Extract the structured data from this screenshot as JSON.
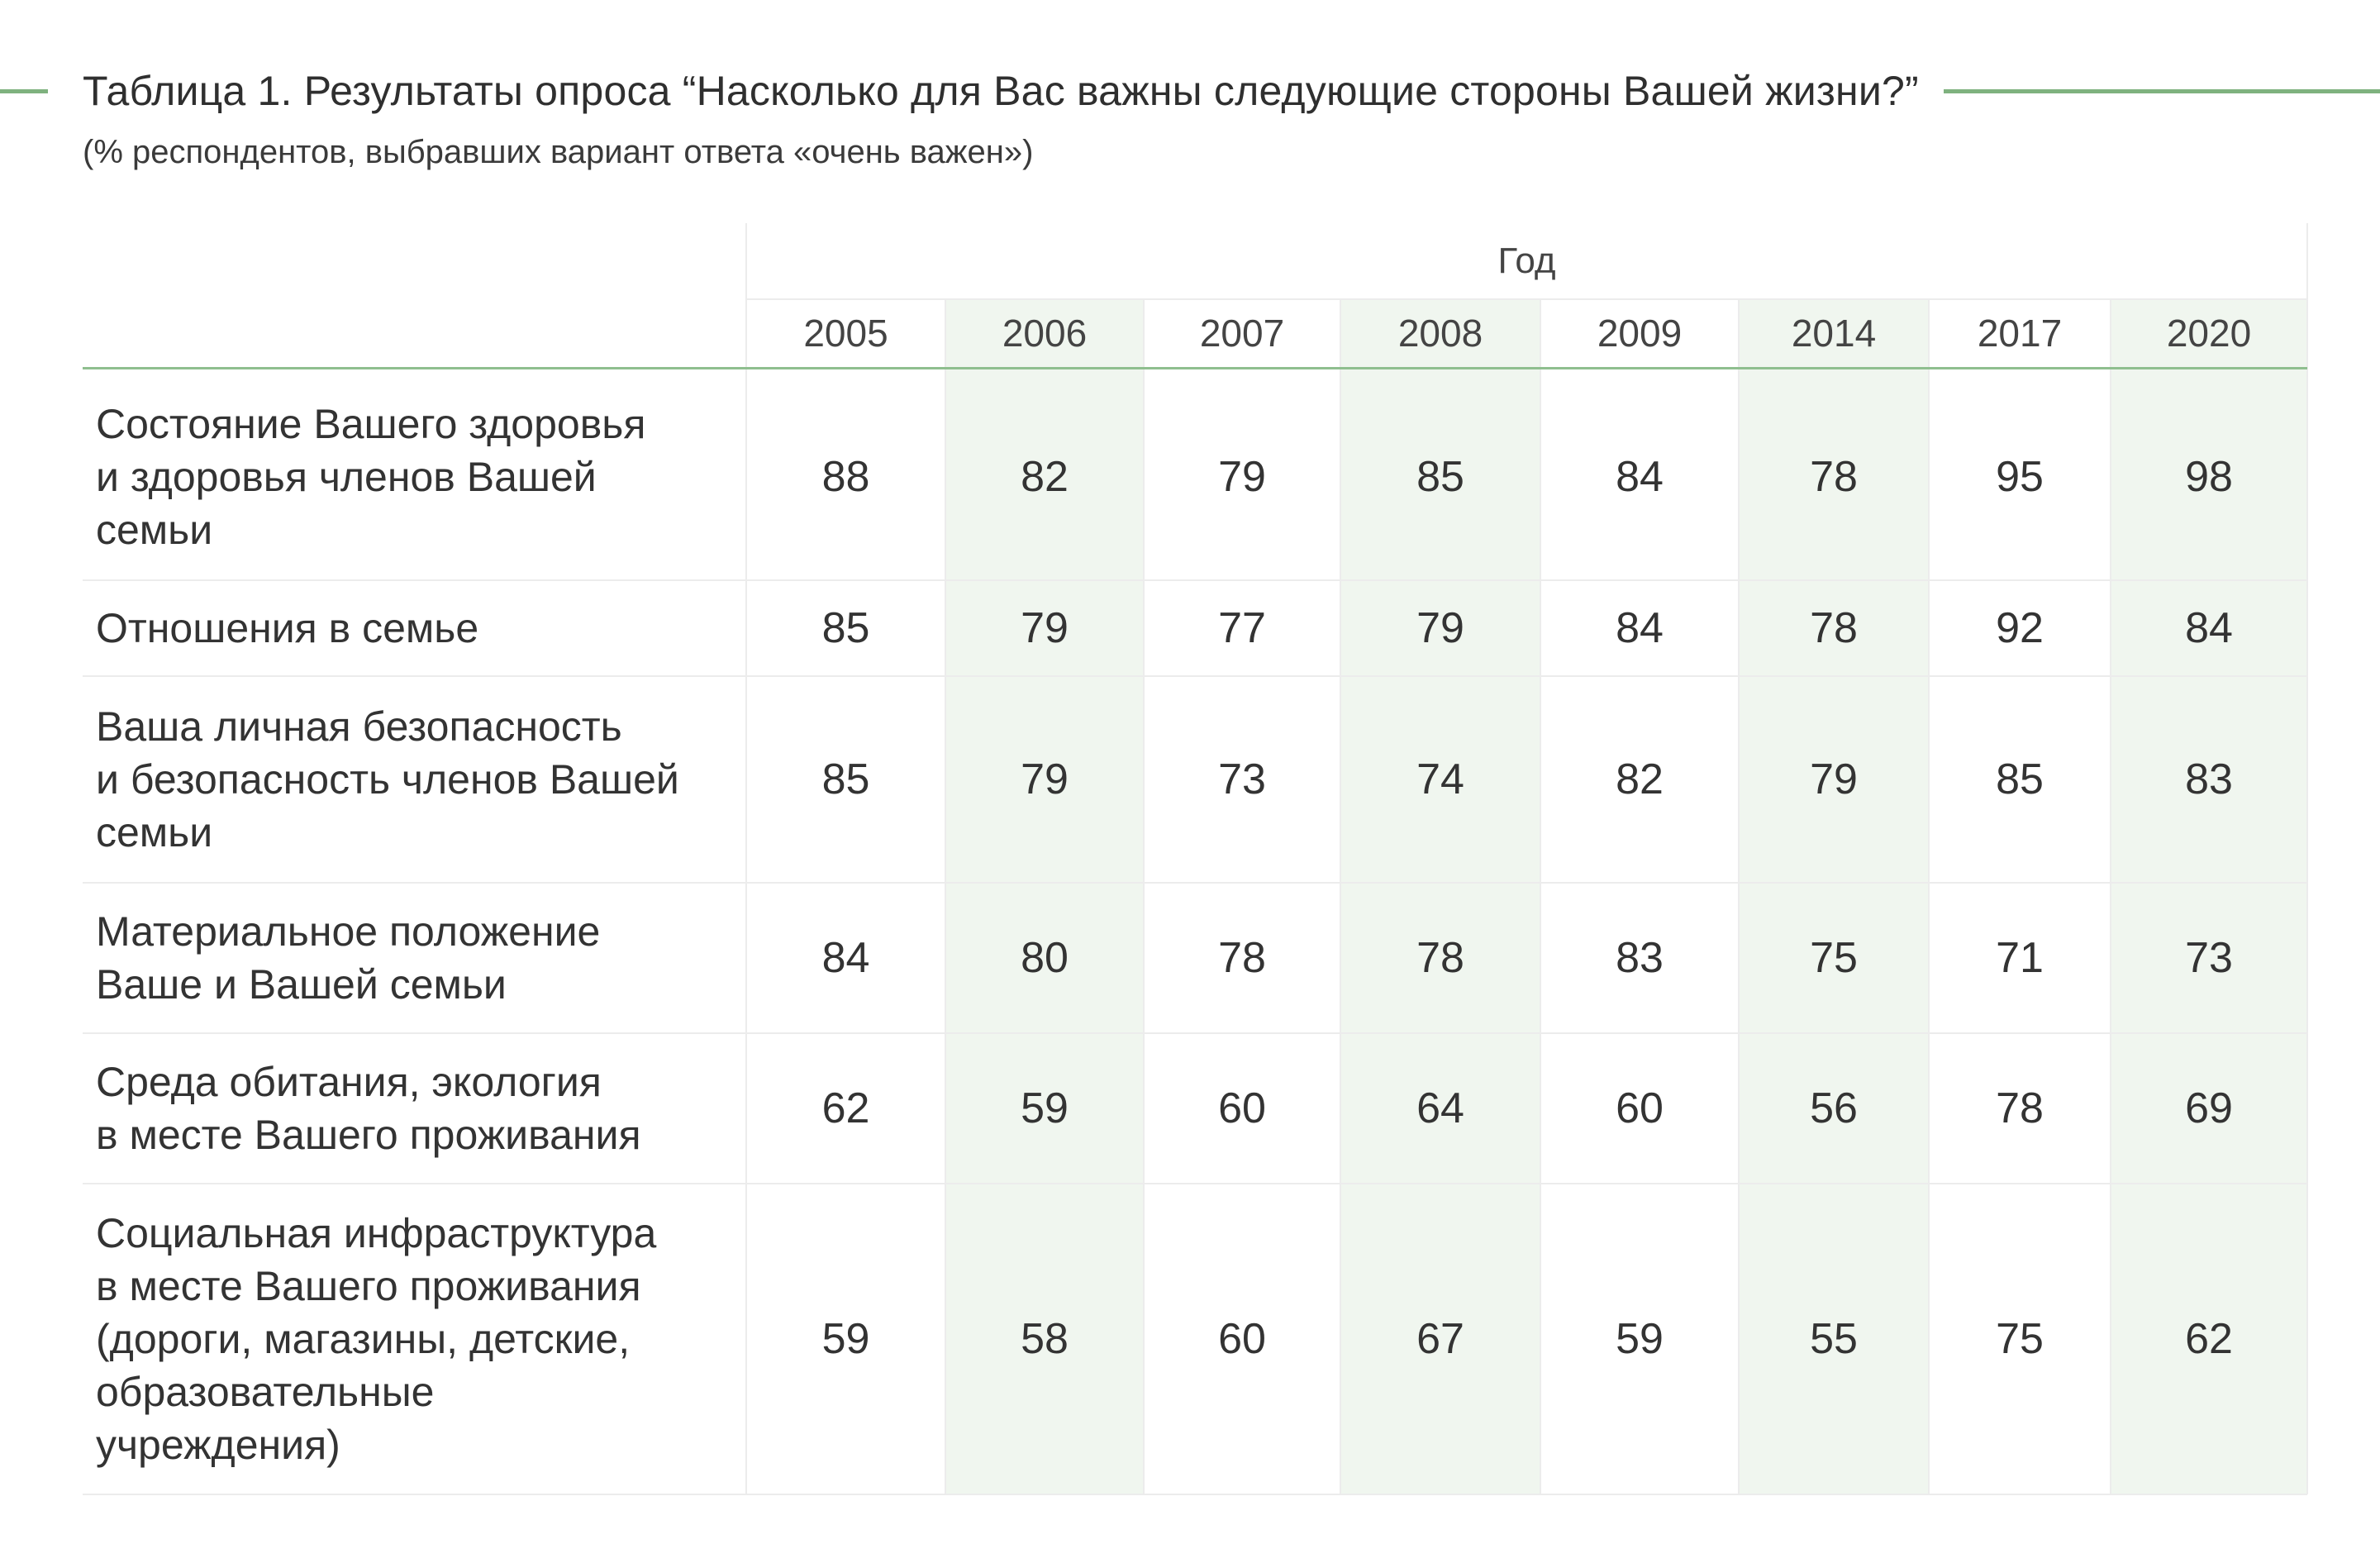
{
  "title": "Таблица 1. Результаты опроса “Насколько для Вас важны следующие стороны Вашей жизни?”",
  "subtitle": "(% респондентов, выбравших вариант ответа «очень важен»)",
  "colors": {
    "accent_line": "#7fb27f",
    "shaded_column": "#f0f6ef"
  },
  "table": {
    "group_header": "Год",
    "years": [
      "2005",
      "2006",
      "2007",
      "2008",
      "2009",
      "2014",
      "2017",
      "2020"
    ],
    "rows": [
      {
        "label_lines": [
          "Состояние Вашего здоровья",
          "и здоровья членов Вашей",
          "семьи"
        ],
        "values": [
          "88",
          "82",
          "79",
          "85",
          "84",
          "78",
          "95",
          "98"
        ]
      },
      {
        "label_lines": [
          "Отношения в семье"
        ],
        "values": [
          "85",
          "79",
          "77",
          "79",
          "84",
          "78",
          "92",
          "84"
        ]
      },
      {
        "label_lines": [
          "Ваша личная безопасность",
          "и безопасность членов Вашей",
          "семьи"
        ],
        "values": [
          "85",
          "79",
          "73",
          "74",
          "82",
          "79",
          "85",
          "83"
        ]
      },
      {
        "label_lines": [
          "Материальное положение",
          "Ваше и Вашей семьи"
        ],
        "values": [
          "84",
          "80",
          "78",
          "78",
          "83",
          "75",
          "71",
          "73"
        ]
      },
      {
        "label_lines": [
          "Среда обитания, экология",
          "в месте Вашего проживания"
        ],
        "values": [
          "62",
          "59",
          "60",
          "64",
          "60",
          "56",
          "78",
          "69"
        ]
      },
      {
        "label_lines": [
          "Социальная инфраструктура",
          "в месте Вашего проживания",
          "(дороги, магазины, детские,",
          "образовательные",
          "учреждения)"
        ],
        "values": [
          "59",
          "58",
          "60",
          "67",
          "59",
          "55",
          "75",
          "62"
        ]
      }
    ]
  }
}
